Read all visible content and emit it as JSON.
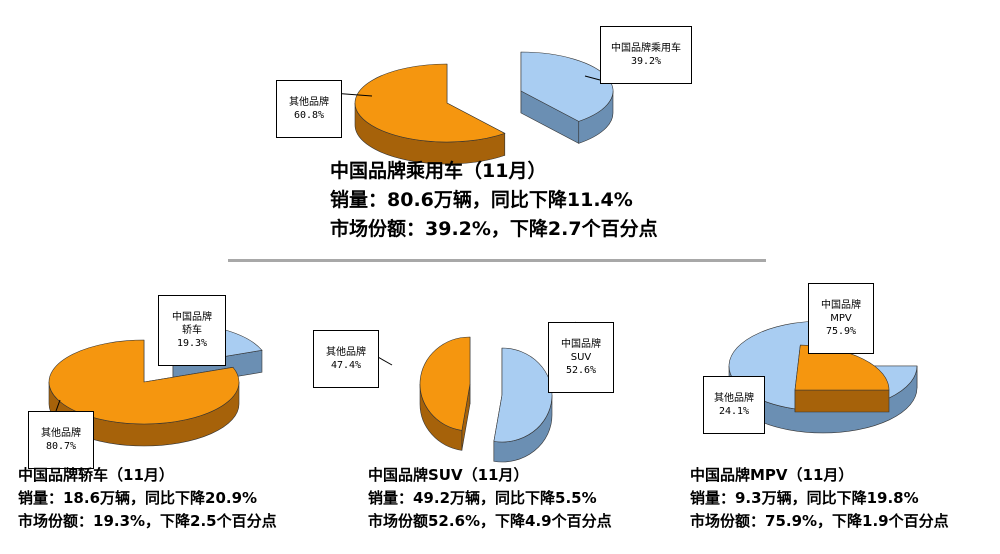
{
  "chart_data": [
    {
      "type": "pie",
      "categories": [
        "中国品牌乘用车",
        "其他品牌"
      ],
      "values": [
        39.2,
        60.8
      ],
      "labels": [
        "中国品牌乘用车",
        "其他品牌"
      ],
      "value_labels": [
        "39.2%",
        "60.8%"
      ],
      "caption": [
        "中国品牌乘用车（11月）",
        "销量：80.6万辆，同比下降11.4%",
        "市场份额：39.2%，下降2.7个百分点"
      ]
    },
    {
      "type": "pie",
      "categories": [
        "中国品牌轿车",
        "其他品牌"
      ],
      "values": [
        19.3,
        80.7
      ],
      "labels": [
        "中国品牌\n轿车",
        "其他品牌"
      ],
      "value_labels": [
        "19.3%",
        "80.7%"
      ],
      "caption": [
        "中国品牌轿车（11月）",
        "销量：18.6万辆，同比下降20.9%",
        "市场份额：19.3%，下降2.5个百分点"
      ]
    },
    {
      "type": "pie",
      "categories": [
        "中国品牌SUV",
        "其他品牌"
      ],
      "values": [
        52.6,
        47.4
      ],
      "labels": [
        "中国品牌\nSUV",
        "其他品牌"
      ],
      "value_labels": [
        "52.6%",
        "47.4%"
      ],
      "caption": [
        "中国品牌SUV（11月）",
        "销量：49.2万辆，同比下降5.5%",
        "市场份额52.6%，下降4.9个百分点"
      ]
    },
    {
      "type": "pie",
      "categories": [
        "中国品牌MPV",
        "其他品牌"
      ],
      "values": [
        75.9,
        24.1
      ],
      "labels": [
        "中国品牌\nMPV",
        "其他品牌"
      ],
      "value_labels": [
        "75.9%",
        "24.1%"
      ],
      "caption": [
        "中国品牌MPV（11月）",
        "销量：9.3万辆，同比下降19.8%",
        "市场份额：75.9%，下降1.9个百分点"
      ]
    }
  ],
  "colors": {
    "chinese_top": "#a9cdf2",
    "chinese_side": "#6b8fb3",
    "other_top": "#f5960f",
    "other_side": "#a6620a"
  }
}
